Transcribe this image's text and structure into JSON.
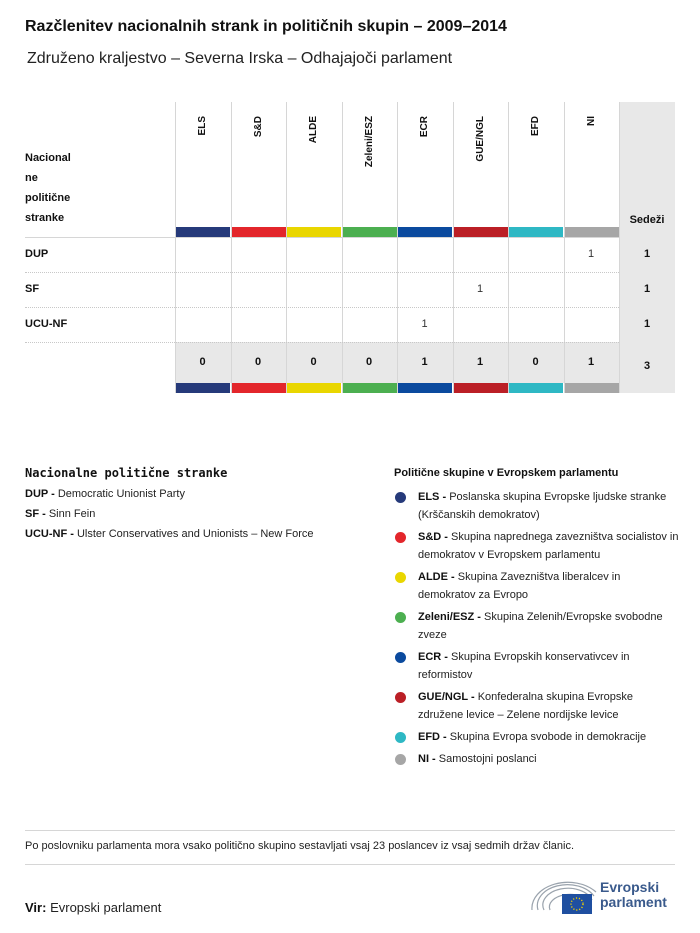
{
  "title": "Razčlenitev nacionalnih strank in političnih skupin – 2009–2014",
  "subtitle": "Združeno kraljestvo – Severna Irska – Odhajajoči parlament",
  "table": {
    "row_header": [
      "Nacional",
      "ne",
      "politične",
      "stranke"
    ],
    "seats_header": "Sedeži",
    "columns": [
      {
        "label": "ELS",
        "color": "#263a7a"
      },
      {
        "label": "S&D",
        "color": "#e3262b"
      },
      {
        "label": "ALDE",
        "color": "#e9d600"
      },
      {
        "label": "Zeleni/ESZ",
        "color": "#4caf50"
      },
      {
        "label": "ECR",
        "color": "#0b4a9e"
      },
      {
        "label": "GUE/NGL",
        "color": "#bb1f26"
      },
      {
        "label": "EFD",
        "color": "#2eb8c4"
      },
      {
        "label": "NI",
        "color": "#a6a6a6"
      }
    ],
    "rows": [
      {
        "party": "DUP",
        "values": [
          "",
          "",
          "",
          "",
          "",
          "",
          "",
          "1"
        ],
        "seats": "1"
      },
      {
        "party": "SF",
        "values": [
          "",
          "",
          "",
          "",
          "",
          "1",
          "",
          ""
        ],
        "seats": "1"
      },
      {
        "party": "UCU-NF",
        "values": [
          "",
          "",
          "",
          "",
          "1",
          "",
          "",
          ""
        ],
        "seats": "1"
      }
    ],
    "totals": [
      "0",
      "0",
      "0",
      "0",
      "1",
      "1",
      "0",
      "1"
    ],
    "total_seats": "3"
  },
  "national_legend": {
    "heading": "Nacionalne politične stranke",
    "items": [
      {
        "abbr": "DUP -",
        "name": "Democratic Unionist Party"
      },
      {
        "abbr": "SF -",
        "name": "Sinn Fein"
      },
      {
        "abbr": "UCU-NF -",
        "name": "Ulster Conservatives and Unionists – New Force"
      }
    ]
  },
  "group_legend": {
    "heading": "Politične skupine v Evropskem parlamentu",
    "items": [
      {
        "abbr": "ELS -",
        "name": "Poslanska skupina Evropske ljudske stranke (Krščanskih demokratov)",
        "color": "#263a7a"
      },
      {
        "abbr": "S&D -",
        "name": "Skupina naprednega zavezništva socialistov in demokratov v Evropskem parlamentu",
        "color": "#e3262b"
      },
      {
        "abbr": "ALDE -",
        "name": "Skupina Zavezništva liberalcev in demokratov za Evropo",
        "color": "#e9d600"
      },
      {
        "abbr": "Zeleni/ESZ -",
        "name": "Skupina Zelenih/Evropske svobodne zveze",
        "color": "#4caf50"
      },
      {
        "abbr": "ECR -",
        "name": "Skupina Evropskih konservativcev in reformistov",
        "color": "#0b4a9e"
      },
      {
        "abbr": "GUE/NGL -",
        "name": "Konfederalna skupina Evropske združene levice – Zelene nordijske levice",
        "color": "#bb1f26"
      },
      {
        "abbr": "EFD -",
        "name": "Skupina Evropa svobode in demokracije",
        "color": "#2eb8c4"
      },
      {
        "abbr": "NI -",
        "name": "Samostojni poslanci",
        "color": "#a6a6a6"
      }
    ]
  },
  "note": "Po poslovniku parlamenta mora vsako politično skupino sestavljati vsaj 23 poslancev iz vsaj sedmih držav članic.",
  "source": {
    "label": "Vir:",
    "text": "Evropski parlament"
  },
  "logo": {
    "line1": "Evropski",
    "line2": "parlament"
  }
}
